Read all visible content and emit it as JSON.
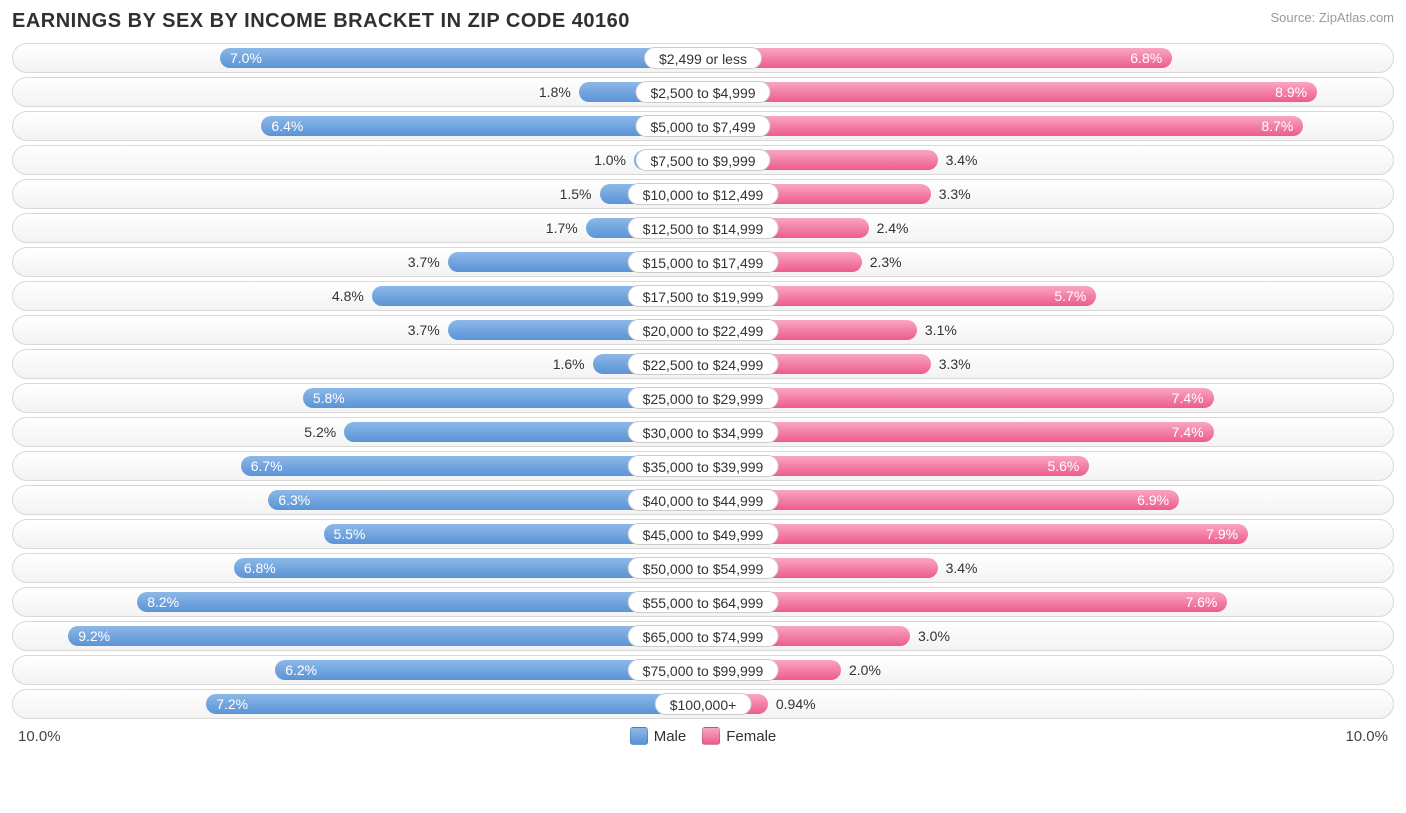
{
  "title": "EARNINGS BY SEX BY INCOME BRACKET IN ZIP CODE 40160",
  "source": "Source: ZipAtlas.com",
  "chart": {
    "type": "diverging-bar",
    "x_max": 10.0,
    "axis_left_label": "10.0%",
    "axis_right_label": "10.0%",
    "male_gradient": [
      "#8cb8e8",
      "#5a93d6"
    ],
    "female_gradient": [
      "#f9a6c2",
      "#ed5b8e"
    ],
    "track_border": "#d8d8d8",
    "track_bg_top": "#ffffff",
    "track_bg_bot": "#f3f3f3",
    "pill_bg": "#ffffff",
    "pill_border": "#cccccc",
    "text_color": "#333333",
    "label_inside_color": "#ffffff",
    "label_fontsize": 14,
    "inside_threshold": 5.5,
    "rows": [
      {
        "bracket": "$2,499 or less",
        "male": 7.0,
        "female": 6.8
      },
      {
        "bracket": "$2,500 to $4,999",
        "male": 1.8,
        "female": 8.9
      },
      {
        "bracket": "$5,000 to $7,499",
        "male": 6.4,
        "female": 8.7
      },
      {
        "bracket": "$7,500 to $9,999",
        "male": 1.0,
        "female": 3.4
      },
      {
        "bracket": "$10,000 to $12,499",
        "male": 1.5,
        "female": 3.3
      },
      {
        "bracket": "$12,500 to $14,999",
        "male": 1.7,
        "female": 2.4
      },
      {
        "bracket": "$15,000 to $17,499",
        "male": 3.7,
        "female": 2.3
      },
      {
        "bracket": "$17,500 to $19,999",
        "male": 4.8,
        "female": 5.7
      },
      {
        "bracket": "$20,000 to $22,499",
        "male": 3.7,
        "female": 3.1
      },
      {
        "bracket": "$22,500 to $24,999",
        "male": 1.6,
        "female": 3.3
      },
      {
        "bracket": "$25,000 to $29,999",
        "male": 5.8,
        "female": 7.4
      },
      {
        "bracket": "$30,000 to $34,999",
        "male": 5.2,
        "female": 7.4
      },
      {
        "bracket": "$35,000 to $39,999",
        "male": 6.7,
        "female": 5.6
      },
      {
        "bracket": "$40,000 to $44,999",
        "male": 6.3,
        "female": 6.9
      },
      {
        "bracket": "$45,000 to $49,999",
        "male": 5.5,
        "female": 7.9
      },
      {
        "bracket": "$50,000 to $54,999",
        "male": 6.8,
        "female": 3.4
      },
      {
        "bracket": "$55,000 to $64,999",
        "male": 8.2,
        "female": 7.6
      },
      {
        "bracket": "$65,000 to $74,999",
        "male": 9.2,
        "female": 3.0
      },
      {
        "bracket": "$75,000 to $99,999",
        "male": 6.2,
        "female": 2.0
      },
      {
        "bracket": "$100,000+",
        "male": 7.2,
        "female": 0.94
      }
    ]
  },
  "legend": {
    "male_label": "Male",
    "female_label": "Female"
  }
}
